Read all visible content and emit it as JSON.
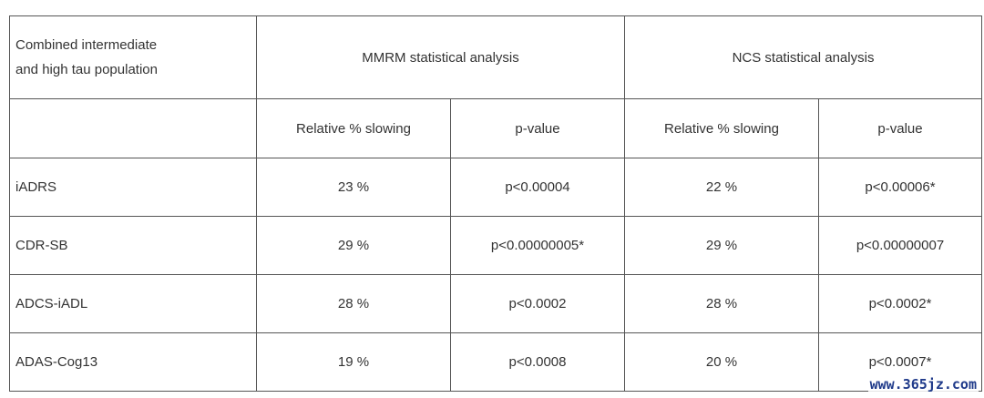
{
  "table": {
    "corner_line1": "Combined intermediate",
    "corner_line2": "and high tau population",
    "groups": [
      "MMRM statistical analysis",
      "NCS statistical analysis"
    ],
    "subheaders": [
      "Relative % slowing",
      "p-value",
      "Relative % slowing",
      "p-value"
    ],
    "rows": [
      {
        "label": "iADRS",
        "cells": [
          "23 %",
          "p<0.00004",
          "22 %",
          "p<0.00006*"
        ]
      },
      {
        "label": "CDR-SB",
        "cells": [
          "29 %",
          "p<0.00000005*",
          "29 %",
          "p<0.00000007"
        ]
      },
      {
        "label": "ADCS-iADL",
        "cells": [
          "28 %",
          "p<0.0002",
          "28 %",
          "p<0.0002*"
        ]
      },
      {
        "label": "ADAS-Cog13",
        "cells": [
          "19 %",
          "p<0.0008",
          "20 %",
          "p<0.0007*"
        ]
      }
    ]
  },
  "watermark": "www.365jz.com"
}
